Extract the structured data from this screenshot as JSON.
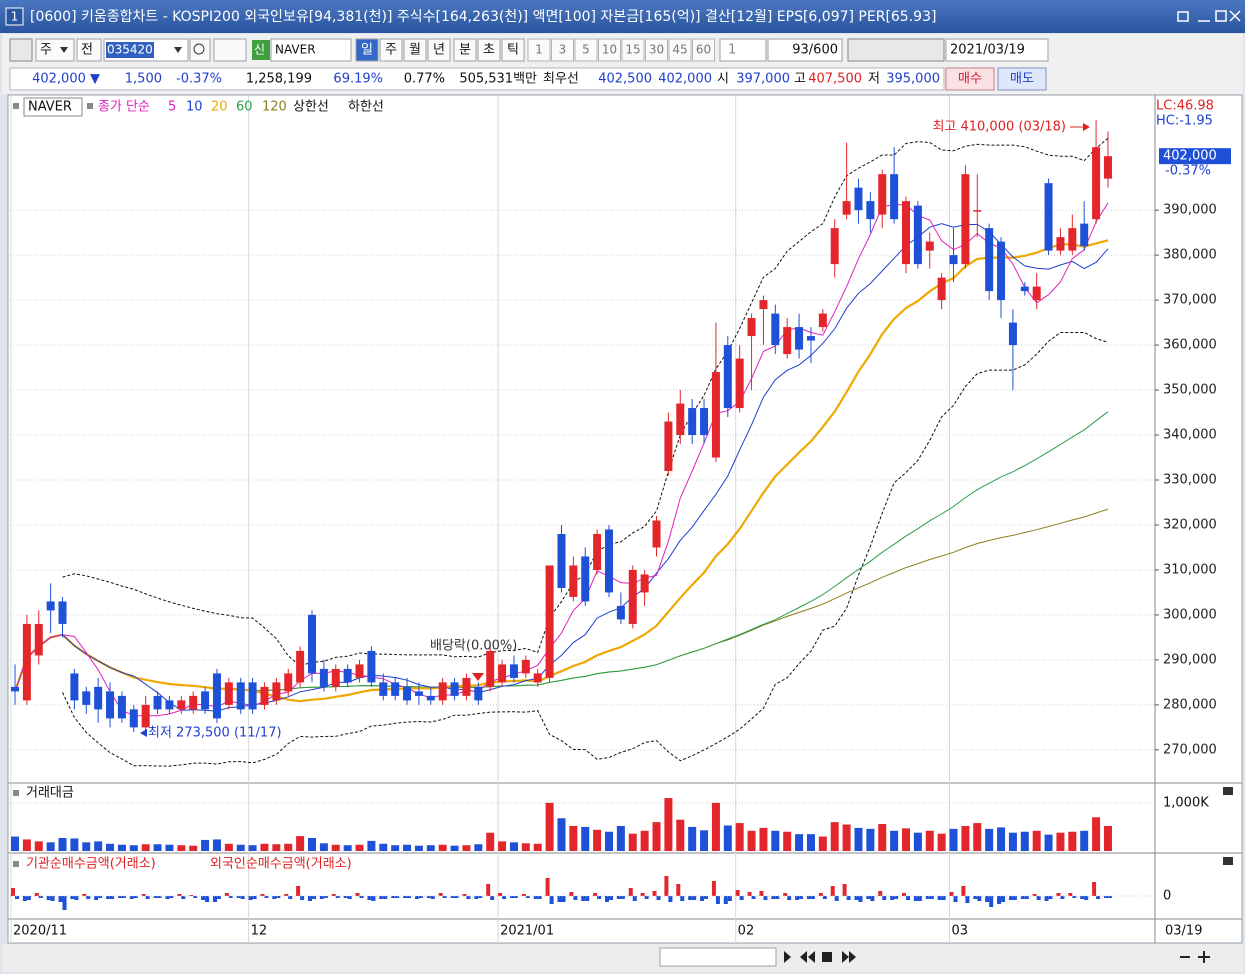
{
  "window": {
    "badge": "1",
    "title": "[0600] 키움종합차트 - KOSPI200 외국인보유[94,381(천)] 주식수[164,263(천)] 액면[100] 자본금[165(억)] 결산[12월] EPS[6,097] PER[65.93]"
  },
  "toolbar": {
    "market": "주",
    "adjust": "전",
    "code": "035420",
    "badge": "신",
    "name": "NAVER",
    "periods": [
      "일",
      "주",
      "월",
      "년",
      "분",
      "초",
      "틱"
    ],
    "intervals": [
      "1",
      "3",
      "5",
      "10",
      "15",
      "30",
      "45",
      "60"
    ],
    "unit": "1",
    "count": "93/600",
    "date": "2021/03/19"
  },
  "quote": {
    "fields": [
      {
        "text": "402,000 ▼",
        "color": "#1f3fd0"
      },
      {
        "text": "1,500",
        "color": "#1f3fd0"
      },
      {
        "text": "-0.37%",
        "color": "#1f3fd0"
      },
      {
        "text": "1,258,199",
        "color": "#111111"
      },
      {
        "text": "69.19%",
        "color": "#1f3fd0"
      },
      {
        "text": "0.77%",
        "color": "#111111"
      },
      {
        "text": "505,531백만",
        "color": "#111111"
      },
      {
        "text": "최우선",
        "color": "#111111"
      },
      {
        "text": "402,500",
        "color": "#1f3fd0"
      },
      {
        "text": "402,000",
        "color": "#1f3fd0"
      },
      {
        "text": "시",
        "color": "#111111"
      },
      {
        "text": "397,000",
        "color": "#1f3fd0"
      },
      {
        "text": "고",
        "color": "#111111"
      },
      {
        "text": "407,500",
        "color": "#e02020"
      },
      {
        "text": "저",
        "color": "#111111"
      },
      {
        "text": "395,000",
        "color": "#1f3fd0"
      }
    ],
    "buy": "매수",
    "sell": "매도"
  },
  "chart_data": {
    "type": "candlestick",
    "symbol": "NAVER",
    "ma_label": "종가 단순",
    "moving_averages": [
      {
        "period": 5,
        "color": "#e020c0"
      },
      {
        "period": 10,
        "color": "#1e3fd0"
      },
      {
        "period": 20,
        "color": "#f0a800"
      },
      {
        "period": 60,
        "color": "#28a048"
      },
      {
        "period": 120,
        "color": "#8c8020"
      }
    ],
    "bands": [
      {
        "name": "상한선"
      },
      {
        "name": "하한선"
      }
    ],
    "lc": "LC:46.98",
    "hc": "HC:-1.95",
    "up_color": "#e3262b",
    "down_color": "#1f50d8",
    "categories": [
      "2020/11",
      null,
      null,
      null,
      null,
      null,
      null,
      null,
      null,
      null,
      null,
      null,
      null,
      null,
      null,
      null,
      null,
      null,
      null,
      null,
      "12",
      null,
      null,
      null,
      null,
      null,
      null,
      null,
      null,
      null,
      null,
      null,
      null,
      null,
      null,
      null,
      null,
      null,
      null,
      null,
      null,
      "2021/01",
      null,
      null,
      null,
      null,
      null,
      null,
      null,
      null,
      null,
      null,
      null,
      null,
      null,
      null,
      null,
      null,
      null,
      null,
      null,
      "02",
      null,
      null,
      null,
      null,
      null,
      null,
      null,
      null,
      null,
      null,
      null,
      null,
      null,
      null,
      null,
      null,
      null,
      "03",
      null,
      null,
      null,
      null,
      null,
      null,
      null,
      null,
      null,
      null,
      null,
      null,
      null
    ],
    "candles": [
      [
        284000,
        289000,
        280000,
        283000
      ],
      [
        281000,
        300000,
        280000,
        298000
      ],
      [
        291000,
        301000,
        289000,
        298000
      ],
      [
        303000,
        307000,
        296000,
        301000
      ],
      [
        303000,
        304000,
        295000,
        298000
      ],
      [
        287000,
        288000,
        279000,
        281000
      ],
      [
        283000,
        284000,
        278000,
        280000
      ],
      [
        284000,
        286000,
        276000,
        279000
      ],
      [
        283000,
        285000,
        275000,
        277000
      ],
      [
        282000,
        283000,
        276000,
        277000
      ],
      [
        279000,
        280000,
        274000,
        275000
      ],
      [
        275000,
        282000,
        273500,
        280000
      ],
      [
        282000,
        283000,
        278000,
        279000
      ],
      [
        281000,
        282000,
        278000,
        279000
      ],
      [
        279000,
        282000,
        278000,
        281000
      ],
      [
        279000,
        283000,
        278000,
        282000
      ],
      [
        283000,
        284000,
        278000,
        279000
      ],
      [
        287000,
        288000,
        276000,
        277000
      ],
      [
        280000,
        286000,
        279000,
        285000
      ],
      [
        285000,
        286000,
        278000,
        279000
      ],
      [
        285000,
        286000,
        278000,
        279000
      ],
      [
        280000,
        285000,
        279000,
        284000
      ],
      [
        281000,
        286000,
        280000,
        285000
      ],
      [
        283000,
        288000,
        282000,
        287000
      ],
      [
        285000,
        293000,
        284000,
        292000
      ],
      [
        300000,
        301000,
        285000,
        287000
      ],
      [
        288000,
        290000,
        283000,
        284000
      ],
      [
        284000,
        289000,
        283000,
        288000
      ],
      [
        288000,
        289000,
        284000,
        285000
      ],
      [
        286000,
        290000,
        285000,
        289000
      ],
      [
        292000,
        293000,
        284000,
        285000
      ],
      [
        285000,
        287000,
        281000,
        282000
      ],
      [
        285000,
        286000,
        281000,
        282000
      ],
      [
        284000,
        286000,
        280000,
        281000
      ],
      [
        283000,
        285000,
        280000,
        282000
      ],
      [
        282000,
        284000,
        280000,
        281000
      ],
      [
        281000,
        286000,
        280000,
        285000
      ],
      [
        285000,
        286000,
        281000,
        282000
      ],
      [
        282000,
        287000,
        281000,
        286000
      ],
      [
        284000,
        285000,
        280000,
        281000
      ],
      [
        284000,
        293000,
        283000,
        292000
      ],
      [
        285000,
        290000,
        284000,
        289000
      ],
      [
        289000,
        291000,
        285000,
        286000
      ],
      [
        287000,
        291000,
        286000,
        290000
      ],
      [
        285000,
        288000,
        284000,
        287000
      ],
      [
        286000,
        311000,
        285000,
        311000
      ],
      [
        318000,
        320000,
        305000,
        306000
      ],
      [
        304000,
        313000,
        303000,
        311000
      ],
      [
        313000,
        315000,
        302000,
        303000
      ],
      [
        310000,
        319000,
        309000,
        318000
      ],
      [
        319000,
        320000,
        304000,
        305000
      ],
      [
        302000,
        305000,
        298000,
        299000
      ],
      [
        298000,
        311000,
        297000,
        310000
      ],
      [
        305000,
        310000,
        302000,
        309000
      ],
      [
        315000,
        322000,
        313000,
        321000
      ],
      [
        332000,
        345000,
        331000,
        343000
      ],
      [
        340000,
        350000,
        338000,
        347000
      ],
      [
        346000,
        348000,
        338000,
        340000
      ],
      [
        346000,
        348000,
        338000,
        340000
      ],
      [
        335000,
        365000,
        334000,
        354000
      ],
      [
        360000,
        362000,
        344000,
        346000
      ],
      [
        346000,
        360000,
        345000,
        357000
      ],
      [
        362000,
        367000,
        350000,
        366000
      ],
      [
        368000,
        371000,
        360000,
        370000
      ],
      [
        367000,
        369000,
        358000,
        360000
      ],
      [
        358000,
        366000,
        357000,
        364000
      ],
      [
        364000,
        367000,
        357000,
        359000
      ],
      [
        362000,
        364000,
        356000,
        361000
      ],
      [
        364000,
        368000,
        363000,
        367000
      ],
      [
        378000,
        388000,
        375000,
        386000
      ],
      [
        389000,
        405000,
        388000,
        392000
      ],
      [
        395000,
        397000,
        387000,
        390000
      ],
      [
        392000,
        394000,
        385000,
        388000
      ],
      [
        389000,
        399000,
        386000,
        398000
      ],
      [
        398000,
        404000,
        387000,
        388000
      ],
      [
        378000,
        393000,
        376000,
        392000
      ],
      [
        391000,
        392000,
        377000,
        378000
      ],
      [
        381000,
        385000,
        377000,
        383000
      ],
      [
        370000,
        376000,
        368000,
        375000
      ],
      [
        380000,
        386000,
        374000,
        378000
      ],
      [
        378000,
        400000,
        377000,
        398000
      ],
      [
        390000,
        398000,
        384000,
        390000
      ],
      [
        386000,
        387000,
        370000,
        372000
      ],
      [
        383000,
        384000,
        366000,
        370000
      ],
      [
        365000,
        368000,
        350000,
        360000
      ],
      [
        373000,
        374000,
        371000,
        372000
      ],
      [
        370000,
        376000,
        368000,
        373000
      ],
      [
        396000,
        397000,
        380000,
        381000
      ],
      [
        381000,
        386000,
        380000,
        384000
      ],
      [
        381000,
        389000,
        380000,
        386000
      ],
      [
        387000,
        392000,
        381000,
        382000
      ],
      [
        388000,
        410000,
        387000,
        404000
      ],
      [
        397000,
        407500,
        395000,
        402000
      ]
    ],
    "ylim": [
      263300,
      415600
    ],
    "yticks": [
      {
        "value": 270000,
        "label": "270,000"
      },
      {
        "value": 280000,
        "label": "280,000"
      },
      {
        "value": 290000,
        "label": "290,000"
      },
      {
        "value": 300000,
        "label": "300,000"
      },
      {
        "value": 310000,
        "label": "310,000"
      },
      {
        "value": 320000,
        "label": "320,000"
      },
      {
        "value": 330000,
        "label": "330,000"
      },
      {
        "value": 340000,
        "label": "340,000"
      },
      {
        "value": 350000,
        "label": "350,000"
      },
      {
        "value": 360000,
        "label": "360,000"
      },
      {
        "value": 370000,
        "label": "370,000"
      },
      {
        "value": 380000,
        "label": "380,000"
      },
      {
        "value": 390000,
        "label": "390,000"
      }
    ],
    "last_price": "402,000",
    "last_change": "-0.37%",
    "annotations": [
      {
        "text": "최고 410,000 (03/18)"
      },
      {
        "text": "최저 273,500 (11/17)"
      },
      {
        "text": "배당락(0.00%)"
      }
    ],
    "current_date": "03/19",
    "panels": [
      {
        "type": "bar",
        "title": "거래대금",
        "values": [
          300,
          240,
          200,
          180,
          270,
          260,
          180,
          200,
          150,
          130,
          120,
          140,
          140,
          130,
          120,
          110,
          230,
          240,
          150,
          130,
          120,
          150,
          140,
          150,
          310,
          270,
          160,
          130,
          120,
          130,
          210,
          150,
          120,
          130,
          110,
          120,
          130,
          110,
          120,
          140,
          380,
          200,
          180,
          160,
          150,
          1000,
          680,
          520,
          500,
          440,
          400,
          520,
          360,
          420,
          600,
          1100,
          650,
          500,
          430,
          1000,
          530,
          580,
          420,
          480,
          420,
          400,
          350,
          350,
          300,
          600,
          550,
          480,
          460,
          560,
          420,
          470,
          380,
          420,
          360,
          460,
          520,
          580,
          460,
          490,
          380,
          400,
          420,
          340,
          380,
          400,
          420,
          700,
          520
        ],
        "ylim": [
          0,
          1350
        ],
        "yticks": [
          {
            "value": 1000,
            "label": "1,000K"
          }
        ]
      },
      {
        "type": "bar",
        "series": [
          {
            "name": "기관순매수금액(거래소)",
            "values": [
              8,
              -5,
              3,
              -4,
              -6,
              -3,
              2,
              -4,
              -3,
              -2,
              -3,
              2,
              -2,
              -3,
              2,
              1,
              -4,
              -6,
              3,
              -2,
              -4,
              2,
              -3,
              2,
              10,
              -5,
              -3,
              2,
              -2,
              3,
              -4,
              -3,
              -2,
              -2,
              -3,
              -2,
              3,
              -2,
              2,
              -3,
              12,
              3,
              -2,
              2,
              -3,
              18,
              -6,
              4,
              -5,
              3,
              -6,
              -3,
              8,
              3,
              5,
              20,
              12,
              -4,
              -5,
              15,
              -8,
              6,
              4,
              5,
              -3,
              3,
              -4,
              -3,
              3,
              10,
              12,
              -4,
              -3,
              5,
              -4,
              3,
              -5,
              -3,
              -4,
              4,
              10,
              -3,
              -6,
              -8,
              -4,
              -3,
              2,
              -5,
              3,
              3,
              -3,
              14,
              -2
            ]
          },
          {
            "name": "외국인순매수금액(거래소)",
            "values": [
              -3,
              -4,
              -2,
              -5,
              -14,
              -4,
              -3,
              -2,
              -3,
              -2,
              -2,
              -3,
              -2,
              -2,
              -3,
              -2,
              -6,
              -3,
              -2,
              -3,
              -3,
              -2,
              -2,
              -3,
              -4,
              -3,
              -2,
              -2,
              -3,
              -2,
              -5,
              -3,
              -2,
              -2,
              -2,
              -3,
              -2,
              -2,
              -3,
              -2,
              -4,
              -3,
              -2,
              -2,
              -3,
              -8,
              -6,
              -4,
              -5,
              -3,
              -4,
              -3,
              -5,
              -3,
              -4,
              -6,
              -5,
              -4,
              -3,
              -8,
              -5,
              -4,
              -3,
              -4,
              -3,
              -4,
              -3,
              -3,
              -3,
              -5,
              -4,
              -6,
              -5,
              -4,
              -3,
              -4,
              -5,
              -3,
              -4,
              -6,
              -7,
              -5,
              -11,
              -6,
              -4,
              -3,
              -4,
              -3,
              -3,
              -2,
              -4,
              -3,
              -2
            ]
          }
        ],
        "ylim": [
          -22,
          40
        ],
        "yticks": [
          0
        ]
      }
    ]
  }
}
